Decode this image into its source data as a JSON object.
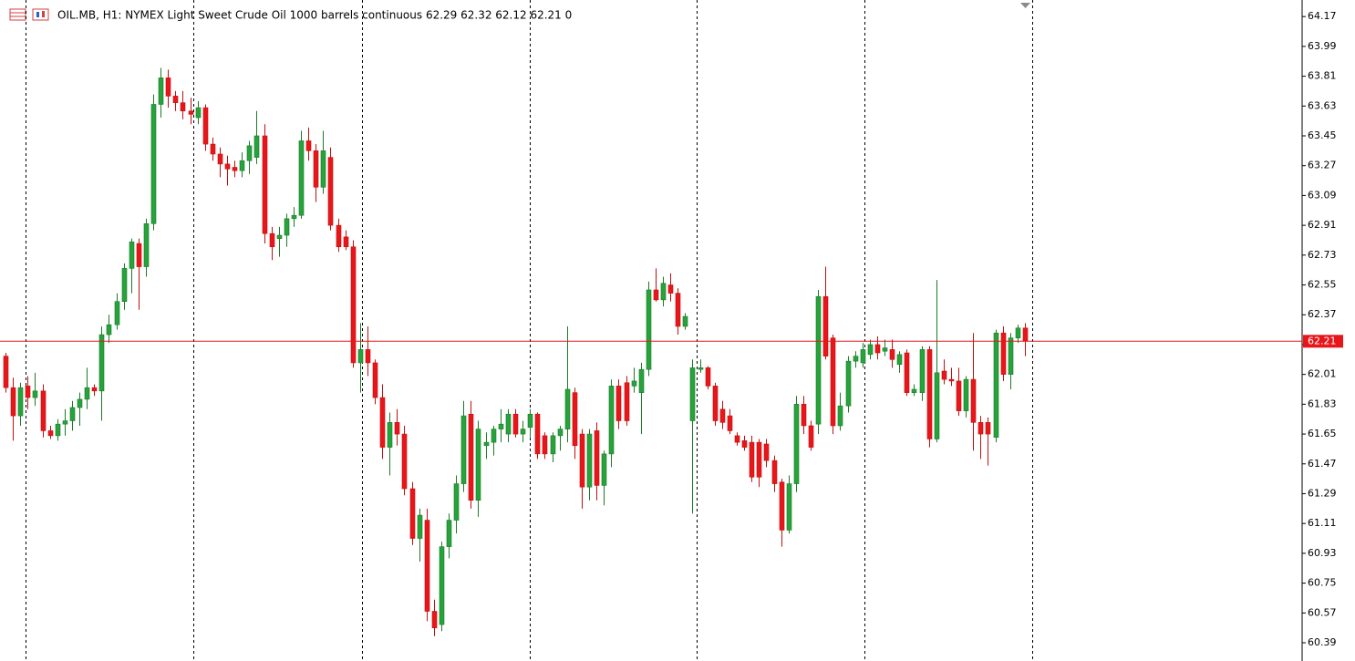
{
  "chart_data": {
    "type": "candlestick",
    "title": "OIL.MB, H1:  NYMEX Light Sweet Crude Oil 1000 barrels continuous  62.29 62.32 62.12 62.21  0",
    "ylim": [
      60.28,
      64.27
    ],
    "yticks": [
      64.17,
      63.99,
      63.81,
      63.63,
      63.45,
      63.27,
      63.09,
      62.91,
      62.73,
      62.55,
      62.37,
      62.19,
      62.01,
      61.83,
      61.65,
      61.47,
      61.29,
      61.11,
      60.93,
      60.75,
      60.57,
      60.39
    ],
    "current_price": 62.21,
    "up_color": "#26a33a",
    "down_color": "#e8161a",
    "price_line_color": "#e8161a",
    "open": [
      62.12,
      61.93,
      61.76,
      61.94,
      61.87,
      61.91,
      61.67,
      61.64,
      61.71,
      61.73,
      61.81,
      61.86,
      61.93,
      61.91,
      62.25,
      62.31,
      62.45,
      62.65,
      62.8,
      62.66,
      62.92,
      63.64,
      63.8,
      63.69,
      63.65,
      63.6,
      63.56,
      63.62,
      63.4,
      63.34,
      63.28,
      63.26,
      63.24,
      63.3,
      63.32,
      63.45,
      62.86,
      62.83,
      62.85,
      62.95,
      62.97,
      63.42,
      63.36,
      63.14,
      63.32,
      62.91,
      62.84,
      62.78,
      62.08,
      62.16,
      62.08,
      61.87,
      61.57,
      61.72,
      61.65,
      61.32,
      61.02,
      61.13,
      60.58,
      60.5,
      60.97,
      61.13,
      61.35,
      61.77,
      61.25,
      61.58,
      61.6,
      61.68,
      61.65,
      61.77,
      61.65,
      61.69,
      61.77,
      61.64,
      61.53,
      61.64,
      61.68,
      61.9,
      61.65,
      61.33,
      61.67,
      61.34,
      61.53,
      61.94,
      61.96,
      61.94,
      61.9,
      62.04,
      62.52,
      62.46,
      62.55,
      62.5,
      62.3,
      61.73,
      62.04,
      62.05,
      61.94,
      61.8,
      61.76,
      61.64,
      61.61,
      61.6,
      61.6,
      61.59,
      61.49,
      61.36,
      61.07,
      61.35,
      61.83,
      61.7,
      61.71,
      62.48,
      62.23,
      61.7,
      61.82,
      62.09,
      62.08,
      62.13,
      62.19,
      62.15,
      62.16,
      62.07,
      62.14,
      61.9,
      61.9,
      62.16,
      61.62,
      62.03,
      61.98,
      61.97,
      61.79,
      61.98,
      61.72,
      61.72,
      61.63,
      62.26,
      62.01,
      62.23,
      62.29
    ],
    "high": [
      62.14,
      61.99,
      61.96,
      62.0,
      62.02,
      61.95,
      61.7,
      61.74,
      61.8,
      61.85,
      61.9,
      62.05,
      61.95,
      62.3,
      62.37,
      62.5,
      62.68,
      62.83,
      62.83,
      62.95,
      63.7,
      63.86,
      63.85,
      63.72,
      63.72,
      63.68,
      63.66,
      63.64,
      63.44,
      63.38,
      63.33,
      63.3,
      63.35,
      63.42,
      63.6,
      63.52,
      62.9,
      62.9,
      62.98,
      63.02,
      63.48,
      63.5,
      63.4,
      63.48,
      63.38,
      62.95,
      62.88,
      62.82,
      62.32,
      62.3,
      62.1,
      61.95,
      61.78,
      61.8,
      61.7,
      61.36,
      61.2,
      61.2,
      60.65,
      61.0,
      61.17,
      61.4,
      61.85,
      61.85,
      61.73,
      61.66,
      61.7,
      61.8,
      61.8,
      61.8,
      61.73,
      61.8,
      61.78,
      61.66,
      61.66,
      61.7,
      62.3,
      61.93,
      61.68,
      61.68,
      61.72,
      61.55,
      61.98,
      61.98,
      62.0,
      62.05,
      62.08,
      62.57,
      62.65,
      62.6,
      62.62,
      62.53,
      62.38,
      62.1,
      62.1,
      62.06,
      61.96,
      61.85,
      61.8,
      61.66,
      61.64,
      61.64,
      61.62,
      61.62,
      61.52,
      61.38,
      61.4,
      61.88,
      61.88,
      61.73,
      62.52,
      62.66,
      62.25,
      61.9,
      62.12,
      62.15,
      62.2,
      62.22,
      62.24,
      62.22,
      62.22,
      62.15,
      62.16,
      61.95,
      62.18,
      62.18,
      62.58,
      62.1,
      62.05,
      62.05,
      62.0,
      62.26,
      61.76,
      61.75,
      62.28,
      62.3,
      62.26,
      62.31,
      62.32
    ],
    "low": [
      61.9,
      61.61,
      61.7,
      61.8,
      61.82,
      61.63,
      61.62,
      61.61,
      61.64,
      61.67,
      61.7,
      61.8,
      61.88,
      61.73,
      62.2,
      62.28,
      62.4,
      62.5,
      62.4,
      62.6,
      62.88,
      63.56,
      63.62,
      63.6,
      63.55,
      63.52,
      63.52,
      63.36,
      63.3,
      63.2,
      63.15,
      63.2,
      63.2,
      63.22,
      63.28,
      62.8,
      62.7,
      62.72,
      62.78,
      62.9,
      62.95,
      63.3,
      63.05,
      63.1,
      62.88,
      62.75,
      62.76,
      62.05,
      61.9,
      62.0,
      61.83,
      61.5,
      61.4,
      61.58,
      61.28,
      60.98,
      60.88,
      60.52,
      60.43,
      60.46,
      60.9,
      61.05,
      61.3,
      61.2,
      61.15,
      61.5,
      61.52,
      61.6,
      61.6,
      61.63,
      61.6,
      61.63,
      61.5,
      61.5,
      61.48,
      61.55,
      61.6,
      61.5,
      61.2,
      61.25,
      61.25,
      61.22,
      61.45,
      61.68,
      61.7,
      61.9,
      61.65,
      62.0,
      62.45,
      62.42,
      62.45,
      62.25,
      62.28,
      61.17,
      62.02,
      61.92,
      61.7,
      61.68,
      61.65,
      61.58,
      61.55,
      61.36,
      61.33,
      61.45,
      61.3,
      60.97,
      61.05,
      61.3,
      61.65,
      61.55,
      61.65,
      62.1,
      61.65,
      61.67,
      61.78,
      62.05,
      62.05,
      62.1,
      62.1,
      62.12,
      62.05,
      62.02,
      61.88,
      61.88,
      61.85,
      61.57,
      61.6,
      61.95,
      61.94,
      61.76,
      61.75,
      61.55,
      61.5,
      61.46,
      61.6,
      61.97,
      61.92,
      62.2,
      62.12
    ],
    "close": [
      61.93,
      61.76,
      61.93,
      61.87,
      61.91,
      61.67,
      61.64,
      61.71,
      61.73,
      61.81,
      61.86,
      61.93,
      61.91,
      62.25,
      62.31,
      62.45,
      62.65,
      62.81,
      62.66,
      62.92,
      63.64,
      63.8,
      63.69,
      63.65,
      63.6,
      63.58,
      63.62,
      63.4,
      63.34,
      63.28,
      63.25,
      63.24,
      63.3,
      63.39,
      63.45,
      62.86,
      62.78,
      62.85,
      62.95,
      62.97,
      63.42,
      63.36,
      63.14,
      63.36,
      62.91,
      62.78,
      62.78,
      62.08,
      62.16,
      62.08,
      61.87,
      61.57,
      61.72,
      61.65,
      61.32,
      61.02,
      61.16,
      60.58,
      60.48,
      60.97,
      61.13,
      61.35,
      61.76,
      61.25,
      61.68,
      61.6,
      61.68,
      61.71,
      61.77,
      61.65,
      61.68,
      61.77,
      61.53,
      61.53,
      61.64,
      61.68,
      61.92,
      61.58,
      61.33,
      61.65,
      61.34,
      61.53,
      61.94,
      61.73,
      61.73,
      61.97,
      62.04,
      62.52,
      62.46,
      62.56,
      62.5,
      62.3,
      62.36,
      62.05,
      62.05,
      61.94,
      61.73,
      61.72,
      61.67,
      61.6,
      61.57,
      61.39,
      61.39,
      61.49,
      61.35,
      61.07,
      61.35,
      61.83,
      61.7,
      61.57,
      62.48,
      62.12,
      61.7,
      61.82,
      62.09,
      62.12,
      62.16,
      62.19,
      62.14,
      62.17,
      62.1,
      62.13,
      61.9,
      61.92,
      62.16,
      61.62,
      62.02,
      61.98,
      61.97,
      61.79,
      61.98,
      61.72,
      61.65,
      61.65,
      62.26,
      62.01,
      62.23,
      62.29,
      62.21
    ]
  }
}
